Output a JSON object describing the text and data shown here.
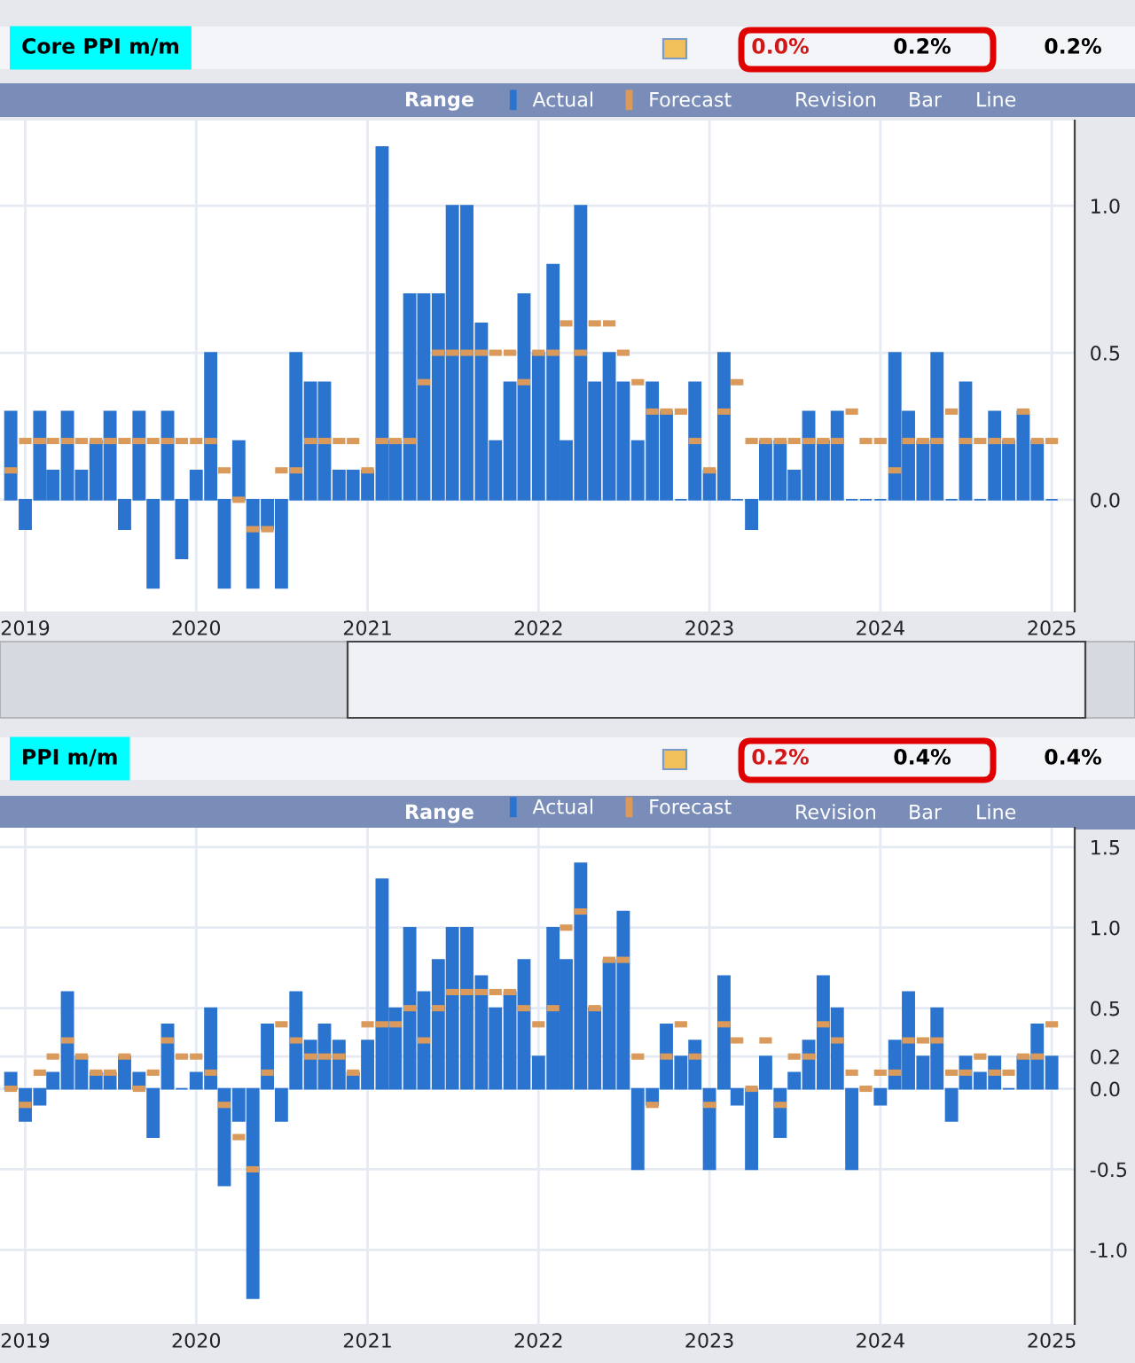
{
  "chart_data": [
    {
      "type": "bar",
      "title": "Core PPI m/m",
      "legend": "top right",
      "grid": true,
      "annotations": [
        "0.0%",
        "0.2%",
        "0.2%",
        "Range",
        "Revision",
        "Bar",
        "Line"
      ],
      "x": [
        "2018-12",
        "2019-01",
        "2019-02",
        "2019-03",
        "2019-04",
        "2019-05",
        "2019-06",
        "2019-07",
        "2019-08",
        "2019-09",
        "2019-10",
        "2019-11",
        "2019-12",
        "2020-01",
        "2020-02",
        "2020-03",
        "2020-04",
        "2020-05",
        "2020-06",
        "2020-07",
        "2020-08",
        "2020-09",
        "2020-10",
        "2020-11",
        "2020-12",
        "2021-01",
        "2021-02",
        "2021-03",
        "2021-04",
        "2021-05",
        "2021-06",
        "2021-07",
        "2021-08",
        "2021-09",
        "2021-10",
        "2021-11",
        "2021-12",
        "2022-01",
        "2022-02",
        "2022-03",
        "2022-04",
        "2022-05",
        "2022-06",
        "2022-07",
        "2022-08",
        "2022-09",
        "2022-10",
        "2022-11",
        "2022-12",
        "2023-01",
        "2023-02",
        "2023-03",
        "2023-04",
        "2023-05",
        "2023-06",
        "2023-07",
        "2023-08",
        "2023-09",
        "2023-10",
        "2023-11",
        "2023-12",
        "2024-01",
        "2024-02",
        "2024-03",
        "2024-04",
        "2024-05",
        "2024-06",
        "2024-07",
        "2024-08",
        "2024-09",
        "2024-10",
        "2024-11",
        "2024-12",
        "2025-01"
      ],
      "series": [
        {
          "name": "Actual",
          "color": "#2a74d0",
          "values": [
            0.3,
            -0.1,
            0.3,
            0.1,
            0.3,
            0.1,
            0.2,
            0.3,
            -0.1,
            0.3,
            -0.3,
            0.3,
            -0.2,
            0.1,
            0.5,
            -0.3,
            0.2,
            -0.3,
            -0.1,
            -0.3,
            0.5,
            0.4,
            0.4,
            0.1,
            0.1,
            0.1,
            1.2,
            0.2,
            0.7,
            0.7,
            0.7,
            1.0,
            1.0,
            0.6,
            0.2,
            0.4,
            0.7,
            0.5,
            0.8,
            0.2,
            1.0,
            0.4,
            0.5,
            0.4,
            0.2,
            0.4,
            0.3,
            0.0,
            0.4,
            0.1,
            0.5,
            0.0,
            -0.1,
            0.2,
            0.2,
            0.1,
            0.3,
            0.2,
            0.3,
            0.0,
            0.0,
            0.0,
            0.5,
            0.3,
            0.2,
            0.5,
            0.0,
            0.4,
            0.0,
            0.3,
            0.2,
            0.3,
            0.2,
            0.0
          ]
        },
        {
          "name": "Forecast",
          "type": "scatter",
          "color": "#d99a5b",
          "values": [
            0.1,
            0.2,
            0.2,
            0.2,
            0.2,
            0.2,
            0.2,
            0.2,
            0.2,
            0.2,
            0.2,
            0.2,
            0.2,
            0.2,
            0.2,
            0.1,
            0.0,
            -0.1,
            -0.1,
            0.1,
            0.1,
            0.2,
            0.2,
            0.2,
            0.2,
            0.1,
            0.2,
            0.2,
            0.2,
            0.4,
            0.5,
            0.5,
            0.5,
            0.5,
            0.5,
            0.5,
            0.4,
            0.5,
            0.5,
            0.6,
            0.5,
            0.6,
            0.6,
            0.5,
            0.4,
            0.3,
            0.3,
            0.3,
            0.2,
            0.1,
            0.3,
            0.4,
            0.2,
            0.2,
            0.2,
            0.2,
            0.2,
            0.2,
            0.2,
            0.3,
            0.2,
            0.2,
            0.1,
            0.2,
            0.2,
            0.2,
            0.3,
            0.2,
            0.2,
            0.2,
            0.2,
            0.3,
            0.2,
            0.2
          ]
        }
      ],
      "xlim": [
        "2018-11-08",
        "2025-02-19"
      ],
      "xticks": [
        "2019",
        "2020",
        "2021",
        "2022",
        "2023",
        "2024",
        "2025"
      ],
      "ylim": [
        -0.38,
        1.29
      ],
      "yticks": [
        {
          "value": 0,
          "label": "0.0"
        },
        0.5,
        {
          "value": 1,
          "label": "1.0"
        }
      ]
    },
    {
      "type": "bar",
      "title": "PPI m/m",
      "legend": "top right",
      "grid": true,
      "annotations": [
        "0.2%",
        "0.4%",
        "0.4%",
        "Range",
        "Revision",
        "Bar",
        "Line"
      ],
      "x": [
        "2018-12",
        "2019-01",
        "2019-02",
        "2019-03",
        "2019-04",
        "2019-05",
        "2019-06",
        "2019-07",
        "2019-08",
        "2019-09",
        "2019-10",
        "2019-11",
        "2019-12",
        "2020-01",
        "2020-02",
        "2020-03",
        "2020-04",
        "2020-05",
        "2020-06",
        "2020-07",
        "2020-08",
        "2020-09",
        "2020-10",
        "2020-11",
        "2020-12",
        "2021-01",
        "2021-02",
        "2021-03",
        "2021-04",
        "2021-05",
        "2021-06",
        "2021-07",
        "2021-08",
        "2021-09",
        "2021-10",
        "2021-11",
        "2021-12",
        "2022-01",
        "2022-02",
        "2022-03",
        "2022-04",
        "2022-05",
        "2022-06",
        "2022-07",
        "2022-08",
        "2022-09",
        "2022-10",
        "2022-11",
        "2022-12",
        "2023-01",
        "2023-02",
        "2023-03",
        "2023-04",
        "2023-05",
        "2023-06",
        "2023-07",
        "2023-08",
        "2023-09",
        "2023-10",
        "2023-11",
        "2023-12",
        "2024-01",
        "2024-02",
        "2024-03",
        "2024-04",
        "2024-05",
        "2024-06",
        "2024-07",
        "2024-08",
        "2024-09",
        "2024-10",
        "2024-11",
        "2024-12",
        "2025-01"
      ],
      "series": [
        {
          "name": "Actual",
          "color": "#2a74d0",
          "values": [
            0.1,
            -0.2,
            -0.1,
            0.1,
            0.6,
            0.2,
            0.1,
            0.1,
            0.2,
            0.1,
            -0.3,
            0.4,
            0.0,
            0.1,
            0.5,
            -0.6,
            -0.2,
            -1.3,
            0.4,
            -0.2,
            0.6,
            0.3,
            0.4,
            0.3,
            0.1,
            0.3,
            1.3,
            0.5,
            1.0,
            0.6,
            0.8,
            1.0,
            1.0,
            0.7,
            0.5,
            0.6,
            0.8,
            0.2,
            1.0,
            0.8,
            1.4,
            0.5,
            0.8,
            1.1,
            -0.5,
            -0.1,
            0.4,
            0.2,
            0.3,
            -0.5,
            0.7,
            -0.1,
            -0.5,
            0.2,
            -0.3,
            0.1,
            0.3,
            0.7,
            0.5,
            -0.5,
            0.0,
            -0.1,
            0.3,
            0.6,
            0.2,
            0.5,
            -0.2,
            0.2,
            0.1,
            0.2,
            0.0,
            0.2,
            0.4,
            0.2
          ]
        },
        {
          "name": "Forecast",
          "type": "scatter",
          "color": "#d99a5b",
          "values": [
            0.0,
            -0.1,
            0.1,
            0.2,
            0.3,
            0.2,
            0.1,
            0.1,
            0.2,
            0.0,
            0.1,
            0.3,
            0.2,
            0.2,
            0.1,
            -0.1,
            -0.3,
            -0.5,
            0.1,
            0.4,
            0.3,
            0.2,
            0.2,
            0.2,
            0.1,
            0.4,
            0.4,
            0.4,
            0.5,
            0.3,
            0.5,
            0.6,
            0.6,
            0.6,
            0.6,
            0.6,
            0.5,
            0.4,
            0.5,
            1.0,
            1.1,
            0.5,
            0.8,
            0.8,
            0.2,
            -0.1,
            0.2,
            0.4,
            0.2,
            -0.1,
            0.4,
            0.3,
            0.0,
            0.3,
            -0.1,
            0.2,
            0.2,
            0.4,
            0.3,
            0.1,
            0.0,
            0.1,
            0.1,
            0.3,
            0.3,
            0.3,
            0.1,
            0.1,
            0.2,
            0.1,
            0.1,
            0.2,
            0.2,
            0.4
          ]
        }
      ],
      "xlim": [
        "2018-11-08",
        "2025-02-19"
      ],
      "xticks": [
        "2019",
        "2020",
        "2021",
        "2022",
        "2023",
        "2024",
        "2025"
      ],
      "ylim": [
        -1.46,
        1.62
      ],
      "yticks": [
        {
          "value": -1,
          "label": "-1.0"
        },
        -0.5,
        {
          "value": 0,
          "label": "0.0"
        },
        {
          "value": 0.2,
          "label": "0.2"
        },
        0.5,
        {
          "value": 1,
          "label": "1.0"
        },
        1.5
      ]
    }
  ]
}
